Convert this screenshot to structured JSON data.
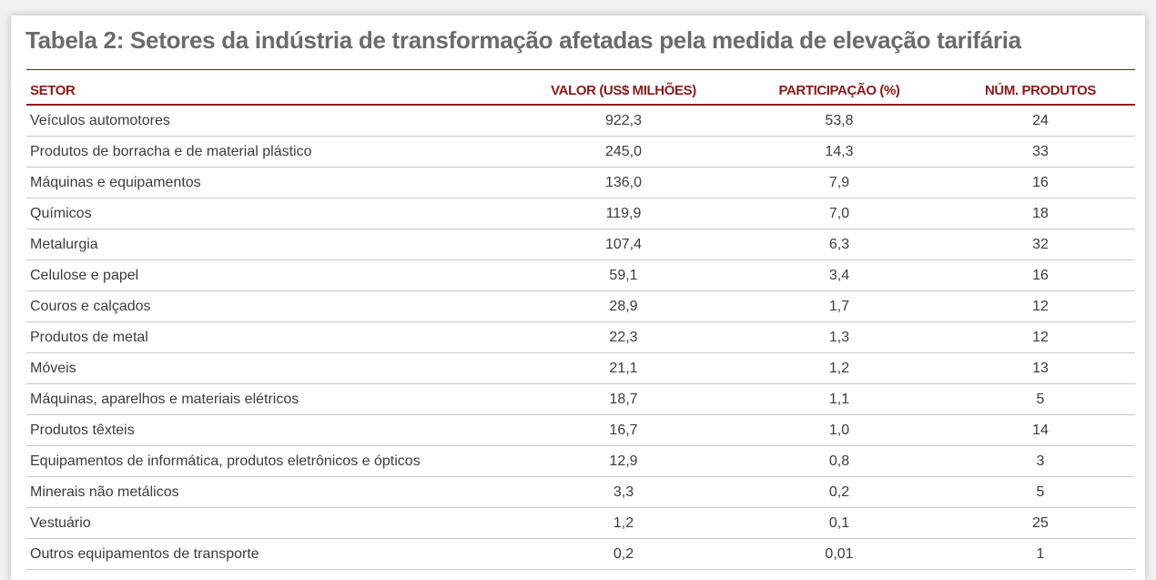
{
  "title": "Tabela 2: Setores da indústria de transformação afetadas pela medida de elevação tarifária",
  "colors": {
    "accent": "#8b1a1a",
    "title_text": "#6b6b6b",
    "body_text": "#3c3c3c",
    "row_rule": "#c9c9c9"
  },
  "headers": {
    "setor": "SETOR",
    "valor": "VALOR (US$ MILHÕES)",
    "participacao": "PARTICIPAÇÃO (%)",
    "num_produtos": "NÚM. PRODUTOS"
  },
  "rows": [
    {
      "setor": "Veículos automotores",
      "valor": "922,3",
      "participacao": "53,8",
      "num_produtos": "24"
    },
    {
      "setor": "Produtos de borracha e de material plástico",
      "valor": "245,0",
      "participacao": "14,3",
      "num_produtos": "33"
    },
    {
      "setor": "Máquinas e equipamentos",
      "valor": "136,0",
      "participacao": "7,9",
      "num_produtos": "16"
    },
    {
      "setor": "Químicos",
      "valor": "119,9",
      "participacao": "7,0",
      "num_produtos": "18"
    },
    {
      "setor": "Metalurgia",
      "valor": "107,4",
      "participacao": "6,3",
      "num_produtos": "32"
    },
    {
      "setor": "Celulose e papel",
      "valor": "59,1",
      "participacao": "3,4",
      "num_produtos": "16"
    },
    {
      "setor": "Couros e calçados",
      "valor": "28,9",
      "participacao": "1,7",
      "num_produtos": "12"
    },
    {
      "setor": "Produtos de metal",
      "valor": "22,3",
      "participacao": "1,3",
      "num_produtos": "12"
    },
    {
      "setor": "Móveis",
      "valor": "21,1",
      "participacao": "1,2",
      "num_produtos": "13"
    },
    {
      "setor": "Máquinas, aparelhos e materiais elétricos",
      "valor": "18,7",
      "participacao": "1,1",
      "num_produtos": "5"
    },
    {
      "setor": "Produtos têxteis",
      "valor": "16,7",
      "participacao": "1,0",
      "num_produtos": "14"
    },
    {
      "setor": "Equipamentos de informática, produtos eletrônicos e ópticos",
      "valor": "12,9",
      "participacao": "0,8",
      "num_produtos": "3"
    },
    {
      "setor": "Minerais não metálicos",
      "valor": "3,3",
      "participacao": "0,2",
      "num_produtos": "5"
    },
    {
      "setor": "Vestuário",
      "valor": "1,2",
      "participacao": "0,1",
      "num_produtos": "25"
    },
    {
      "setor": "Outros equipamentos de transporte",
      "valor": "0,2",
      "participacao": "0,01",
      "num_produtos": "1"
    }
  ]
}
